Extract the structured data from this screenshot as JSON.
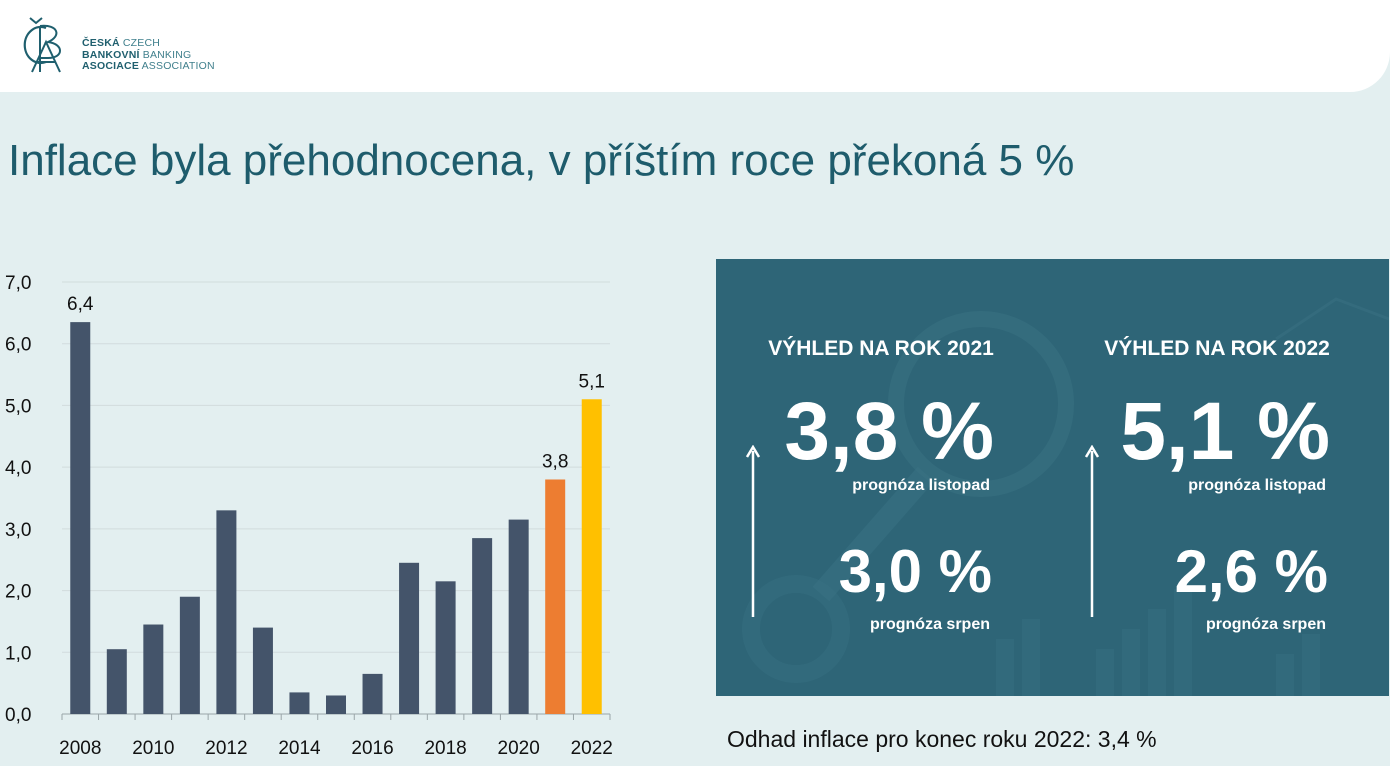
{
  "logo": {
    "mark": "ČBA",
    "line1_bold": "ČESKÁ",
    "line1_light": "CZECH",
    "line2_bold": "BANKOVNÍ",
    "line2_light": "BANKING",
    "line3_bold": "ASOCIACE",
    "line3_light": "ASSOCIATION"
  },
  "title": "Inflace byla přehodnocena, v příštím roce překoná 5 %",
  "colors": {
    "bar": "#44546a",
    "bar_2021": "#ed7d31",
    "bar_2022": "#ffc000",
    "panel": "#2e6577",
    "title": "#1e5c6c"
  },
  "chart_data": {
    "type": "bar",
    "x": [
      2008,
      2009,
      2010,
      2011,
      2012,
      2013,
      2014,
      2015,
      2016,
      2017,
      2018,
      2019,
      2020,
      2021,
      2022
    ],
    "values": [
      6.35,
      1.05,
      1.45,
      1.9,
      3.3,
      1.4,
      0.35,
      0.3,
      0.65,
      2.45,
      2.15,
      2.85,
      3.15,
      3.8,
      5.1
    ],
    "tick_labels_x": [
      "2008",
      "2010",
      "2012",
      "2014",
      "2016",
      "2018",
      "2020",
      "2022"
    ],
    "tick_labels_y": [
      "0,0",
      "1,0",
      "2,0",
      "3,0",
      "4,0",
      "5,0",
      "6,0",
      "7,0"
    ],
    "data_labels": [
      {
        "index": 0,
        "text": "6,4"
      },
      {
        "index": 13,
        "text": "3,8"
      },
      {
        "index": 14,
        "text": "5,1"
      }
    ],
    "ylim": [
      0,
      7
    ],
    "grid": true,
    "legend": "none"
  },
  "outlook": {
    "y2021": {
      "heading": "VÝHLED NA ROK 2021",
      "nov_value": "3,8 %",
      "nov_label": "prognóza listopad",
      "aug_value": "3,0 %",
      "aug_label": "prognóza srpen"
    },
    "y2022": {
      "heading": "VÝHLED NA ROK 2022",
      "nov_value": "5,1 %",
      "nov_label": "prognóza listopad",
      "aug_value": "2,6 %",
      "aug_label": "prognóza srpen"
    }
  },
  "footnote": "Odhad inflace pro konec roku 2022: 3,4 %"
}
